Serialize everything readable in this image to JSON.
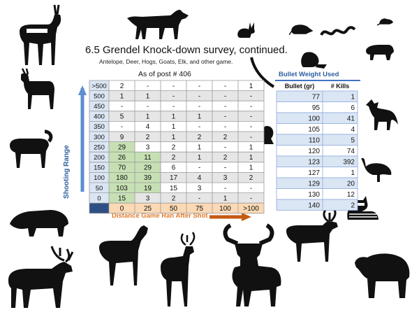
{
  "title": "6.5 Grendel Knock-down survey, continued.",
  "subtitle": "Antelope, Deer, Hogs, Goats, Elk, and other game.",
  "as_of": "As of post # 406",
  "colors": {
    "row_band": "#e6e6e6",
    "green_cell": "#c6e0b4",
    "header_blue": "#dbe6f4",
    "header_orange": "#fbd9b5",
    "corner": "#2e4f86",
    "accent_blue": "#2e5f9e",
    "accent_orange": "#e07a28"
  },
  "icons": [
    "antelope-icon",
    "wolf-icon",
    "rabbit-icon",
    "rat-icon",
    "snake-icon",
    "mouse-icon",
    "badger-icon",
    "beaver-icon",
    "goat-icon",
    "sheep-icon",
    "fox-icon",
    "squirrel-icon",
    "turkey-icon",
    "raccoon-icon",
    "hog-icon",
    "caribou-icon",
    "elk-icon",
    "doe-icon",
    "deer-icon",
    "moose-icon",
    "bear-icon",
    "horn-icon"
  ],
  "chart_data": [
    {
      "type": "table",
      "xlabel": "Distance Game Ran After Shot",
      "ylabel": "Shooting Range",
      "columns": [
        "0",
        "25",
        "50",
        "75",
        "100",
        ">100"
      ],
      "rows": [
        {
          "label": ">500",
          "values": [
            "2",
            "-",
            "-",
            "-",
            "-",
            "1"
          ]
        },
        {
          "label": "500",
          "values": [
            "1",
            "1",
            "-",
            "-",
            "-",
            "-"
          ]
        },
        {
          "label": "450",
          "values": [
            "-",
            "-",
            "-",
            "-",
            "-",
            "-"
          ]
        },
        {
          "label": "400",
          "values": [
            "5",
            "1",
            "1",
            "1",
            "-",
            "-"
          ]
        },
        {
          "label": "350",
          "values": [
            "-",
            "4",
            "1",
            "-",
            "-",
            "-"
          ]
        },
        {
          "label": "300",
          "values": [
            "9",
            "2",
            "1",
            "2",
            "2",
            "-"
          ]
        },
        {
          "label": "250",
          "values": [
            "29",
            "3",
            "2",
            "1",
            "-",
            "1"
          ]
        },
        {
          "label": "200",
          "values": [
            "26",
            "11",
            "2",
            "1",
            "2",
            "1"
          ]
        },
        {
          "label": "150",
          "values": [
            "70",
            "29",
            "6",
            "-",
            "-",
            "1"
          ]
        },
        {
          "label": "100",
          "values": [
            "180",
            "39",
            "17",
            "4",
            "3",
            "2"
          ]
        },
        {
          "label": "50",
          "values": [
            "103",
            "19",
            "15",
            "3",
            "-",
            "-"
          ]
        },
        {
          "label": "0",
          "values": [
            "15",
            "3",
            "2",
            "-",
            "1",
            "-"
          ]
        }
      ]
    },
    {
      "type": "table",
      "title": "Bullet Weight Used",
      "columns": [
        "Bullet (gr)",
        "# Kills"
      ],
      "rows": [
        {
          "values": [
            "77",
            "1"
          ]
        },
        {
          "values": [
            "95",
            "6"
          ]
        },
        {
          "values": [
            "100",
            "41"
          ]
        },
        {
          "values": [
            "105",
            "4"
          ]
        },
        {
          "values": [
            "110",
            "5"
          ]
        },
        {
          "values": [
            "120",
            "74"
          ]
        },
        {
          "values": [
            "123",
            "392"
          ]
        },
        {
          "values": [
            "127",
            "1"
          ]
        },
        {
          "values": [
            "129",
            "20"
          ]
        },
        {
          "values": [
            "130",
            "12"
          ]
        },
        {
          "values": [
            "140",
            "2"
          ]
        }
      ]
    }
  ]
}
